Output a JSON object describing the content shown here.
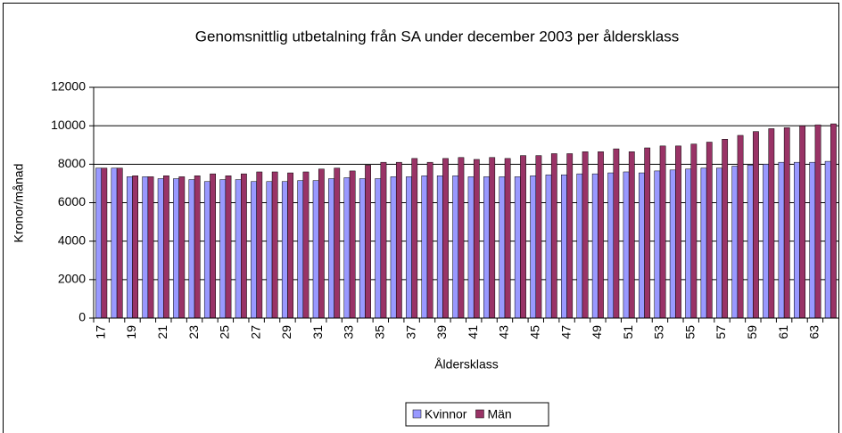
{
  "chart_data": {
    "type": "bar",
    "title": "Genomsnittlig utbetalning från SA under december 2003 per åldersklass",
    "x_label": "Åldersklass",
    "y_label": "Kronor/månad",
    "categories": [
      "17",
      null,
      "19",
      null,
      "21",
      null,
      "23",
      null,
      "25",
      null,
      "27",
      null,
      "29",
      null,
      "31",
      null,
      "33",
      null,
      "35",
      null,
      "37",
      null,
      "39",
      null,
      "41",
      null,
      "43",
      null,
      "45",
      null,
      "47",
      null,
      "49",
      null,
      "51",
      null,
      "53",
      null,
      "55",
      null,
      "57",
      null,
      "59",
      null,
      "61",
      null,
      "63",
      null
    ],
    "series": [
      {
        "name": "Kvinnor",
        "color": "#9999ff",
        "values": [
          7800,
          7800,
          7350,
          7350,
          7250,
          7250,
          7200,
          7100,
          7200,
          7200,
          7100,
          7100,
          7100,
          7150,
          7150,
          7250,
          7300,
          7250,
          7250,
          7350,
          7350,
          7400,
          7400,
          7400,
          7350,
          7350,
          7350,
          7350,
          7400,
          7450,
          7450,
          7500,
          7500,
          7550,
          7600,
          7550,
          7650,
          7700,
          7750,
          7800,
          7800,
          7900,
          7950,
          8000,
          8100,
          8100,
          8100,
          8150
        ]
      },
      {
        "name": "Män",
        "color": "#993366",
        "values": [
          7800,
          7800,
          7400,
          7350,
          7400,
          7350,
          7400,
          7500,
          7400,
          7500,
          7600,
          7600,
          7550,
          7600,
          7750,
          7800,
          7650,
          7950,
          8100,
          8100,
          8300,
          8100,
          8300,
          8350,
          8250,
          8350,
          8300,
          8450,
          8450,
          8550,
          8550,
          8650,
          8650,
          8800,
          8650,
          8850,
          8950,
          8950,
          9050,
          9150,
          9300,
          9500,
          9700,
          9850,
          9900,
          10000,
          10050,
          10100
        ]
      }
    ],
    "ylim": [
      0,
      12000
    ],
    "yticks": [
      0,
      2000,
      4000,
      6000,
      8000,
      10000,
      12000
    ],
    "grid": true,
    "legend": "bottom"
  }
}
